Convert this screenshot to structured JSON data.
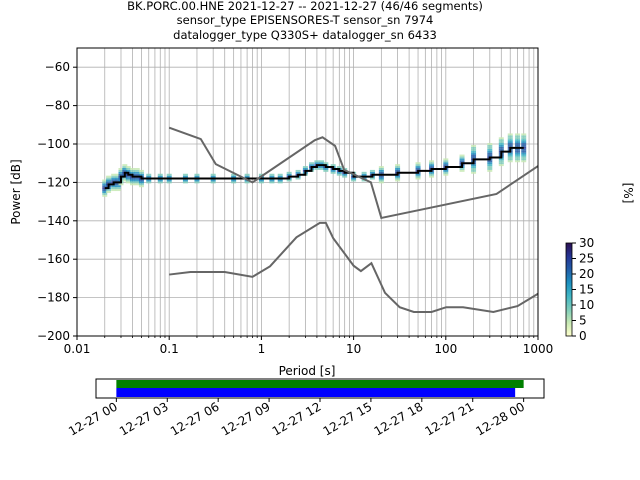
{
  "title_lines": [
    "BK.PORC.00.HNE   2021-12-27 -- 2021-12-27  (46/46 segments)",
    "sensor_type EPISENSORES-T sensor_sn 7974",
    "datalogger_type Q330S+ datalogger_sn 6433"
  ],
  "colors": {
    "mode_line": "#000000",
    "noise_models": "#666666",
    "grid": "#b0b0b0",
    "timeline_green": "#008000",
    "timeline_blue": "#0000ff"
  },
  "chart_data": [
    {
      "type": "line",
      "name": "ppsd",
      "xlabel": "Period [s]",
      "ylabel": "Power [dB]",
      "x_scale": "log",
      "xlim": [
        0.01,
        1000
      ],
      "ylim": [
        -200,
        -50
      ],
      "grid": true,
      "x_ticks": [
        0.01,
        0.1,
        1,
        10,
        100,
        1000
      ],
      "x_tick_labels": [
        "0.01",
        "0.1",
        "1",
        "10",
        "100",
        "1000"
      ],
      "y_ticks": [
        -200,
        -180,
        -160,
        -140,
        -120,
        -100,
        -80,
        -60
      ],
      "y_tick_labels": [
        "−200",
        "−180",
        "−160",
        "−140",
        "−120",
        "−100",
        "−80",
        "−60"
      ],
      "colorbar": {
        "label": "[%]",
        "range": [
          0,
          30
        ],
        "ticks": [
          0,
          5,
          10,
          15,
          20,
          25,
          30
        ],
        "tick_labels": [
          "0",
          "5",
          "10",
          "15",
          "20",
          "25",
          "30"
        ],
        "colormap": [
          "#ffffcc",
          "#c7e9b4",
          "#7fcdbb",
          "#41b6c4",
          "#1d91c0",
          "#225ea8",
          "#253494",
          "#2c1050"
        ]
      },
      "series": [
        {
          "role": "mode",
          "x": [
            0.02,
            0.022,
            0.025,
            0.028,
            0.03,
            0.033,
            0.036,
            0.04,
            0.045,
            0.05,
            0.06,
            0.08,
            0.1,
            0.15,
            0.2,
            0.3,
            0.5,
            0.7,
            1,
            1.3,
            1.6,
            2,
            2.5,
            3,
            3.5,
            4,
            4.5,
            5,
            6,
            7,
            8,
            10,
            13,
            16,
            20,
            30,
            50,
            70,
            100,
            150,
            200,
            300,
            400,
            500,
            600,
            700
          ],
          "y": [
            -123,
            -121,
            -120,
            -120,
            -117,
            -115,
            -116,
            -117,
            -117,
            -118,
            -118,
            -118,
            -118,
            -118,
            -118,
            -118,
            -118,
            -118,
            -118,
            -118,
            -118,
            -117,
            -116,
            -114,
            -112,
            -111,
            -111,
            -112,
            -113,
            -114,
            -115,
            -117,
            -117,
            -116,
            -116,
            -115,
            -114,
            -113,
            -112,
            -110,
            -108,
            -107,
            -104,
            -102,
            -102,
            -102
          ]
        },
        {
          "role": "high-noise-model",
          "x": [
            0.1,
            0.22,
            0.32,
            0.8,
            3.8,
            4.6,
            6.3,
            7.9,
            15.4,
            20,
            354.8,
            1000
          ],
          "y": [
            -91.5,
            -97.4,
            -110.5,
            -120,
            -98,
            -96.5,
            -101,
            -113.5,
            -120,
            -138.5,
            -126,
            -111.5
          ]
        },
        {
          "role": "low-noise-model",
          "x": [
            0.1,
            0.17,
            0.4,
            0.8,
            1.24,
            2.4,
            4.3,
            5,
            6,
            10,
            12,
            15.6,
            21.9,
            31.6,
            45,
            70,
            101,
            154,
            328,
            600,
            1000
          ],
          "y": [
            -168,
            -166.7,
            -166.7,
            -169.2,
            -163.7,
            -148.6,
            -141.1,
            -141.1,
            -149,
            -163.4,
            -166.2,
            -162.1,
            -177.5,
            -185,
            -187.5,
            -187.5,
            -185,
            -185,
            -187.5,
            -184.4,
            -178
          ]
        }
      ]
    },
    {
      "type": "bar",
      "name": "data-coverage-timeline",
      "x_tick_labels": [
        "12-27 00",
        "12-27 03",
        "12-27 06",
        "12-27 09",
        "12-27 12",
        "12-27 15",
        "12-27 18",
        "12-27 21",
        "12-28 00"
      ],
      "x_ticks_hours": [
        0,
        3,
        6,
        9,
        12,
        15,
        18,
        21,
        24
      ],
      "xlim_hours": [
        -1.2,
        25.2
      ],
      "bars": [
        {
          "role": "used",
          "start_hour": 0,
          "end_hour": 24
        },
        {
          "role": "available",
          "start_hour": 0,
          "end_hour": 23.5
        }
      ]
    }
  ]
}
